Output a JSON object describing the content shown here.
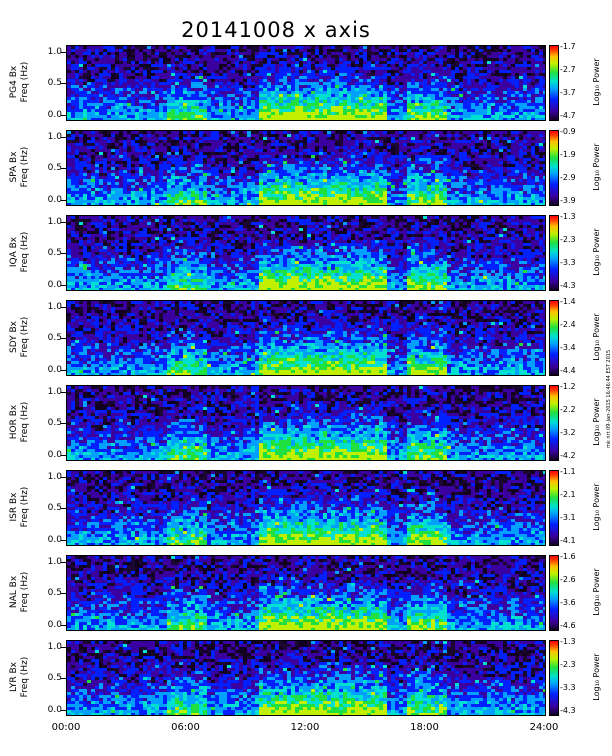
{
  "chart_data": {
    "type": "heatmap",
    "title": "20141008  x axis",
    "xlabel": "",
    "x_ticks": [
      "00:00",
      "06:00",
      "12:00",
      "18:00",
      "24:00"
    ],
    "x_range_hours": [
      0,
      24
    ],
    "y_range_hz": [
      0,
      1.0
    ],
    "y_ticks": [
      "1.0",
      "0.5",
      "0.0"
    ],
    "colorbar_label": "Log₁₀ Power",
    "colorbar_colors": [
      "#120020",
      "#3a00a0",
      "#0020ff",
      "#00a0ff",
      "#00e0d0",
      "#20e040",
      "#c0f000",
      "#ffc000",
      "#ff4000",
      "#ff0000"
    ],
    "side_note": "mk nrt 09-Jan-2015 16:46:44 EST 2015",
    "panels": [
      {
        "station": "PG4",
        "ylabel": "PG4 Bx\nFreq (Hz)",
        "cbar_max": "-1.7",
        "cbar_ticks": [
          "-1.7",
          "-2.7",
          "-3.7",
          "-4.7"
        ]
      },
      {
        "station": "SPA",
        "ylabel": "SPA Bx\nFreq (Hz)",
        "cbar_max": "-0.9",
        "cbar_ticks": [
          "-0.9",
          "-1.9",
          "-2.9",
          "-3.9"
        ]
      },
      {
        "station": "IQA",
        "ylabel": "IQA Bx\nFreq (Hz)",
        "cbar_max": "-1.3",
        "cbar_ticks": [
          "-1.3",
          "-2.3",
          "-3.3",
          "-4.3"
        ]
      },
      {
        "station": "SDY",
        "ylabel": "SDY Bx\nFreq (Hz)",
        "cbar_max": "-1.4",
        "cbar_ticks": [
          "-1.4",
          "-2.4",
          "-3.4",
          "-4.4"
        ]
      },
      {
        "station": "HOR",
        "ylabel": "HOR Bx\nFreq (Hz)",
        "cbar_max": "-1.2",
        "cbar_ticks": [
          "-1.2",
          "-2.2",
          "-3.2",
          "-4.2"
        ]
      },
      {
        "station": "ISR",
        "ylabel": "ISR Bx\nFreq (Hz)",
        "cbar_max": "-1.1",
        "cbar_ticks": [
          "-1.1",
          "-2.1",
          "-3.1",
          "-4.1"
        ]
      },
      {
        "station": "NAL",
        "ylabel": "NAL Bx\nFreq (Hz)",
        "cbar_max": "-1.6",
        "cbar_ticks": [
          "-1.6",
          "-2.6",
          "-3.6",
          "-4.6"
        ]
      },
      {
        "station": "LYR",
        "ylabel": "LYR Bx\nFreq (Hz)",
        "cbar_max": "-1.3",
        "cbar_ticks": [
          "-1.3",
          "-2.3",
          "-3.3",
          "-4.3"
        ]
      }
    ]
  }
}
